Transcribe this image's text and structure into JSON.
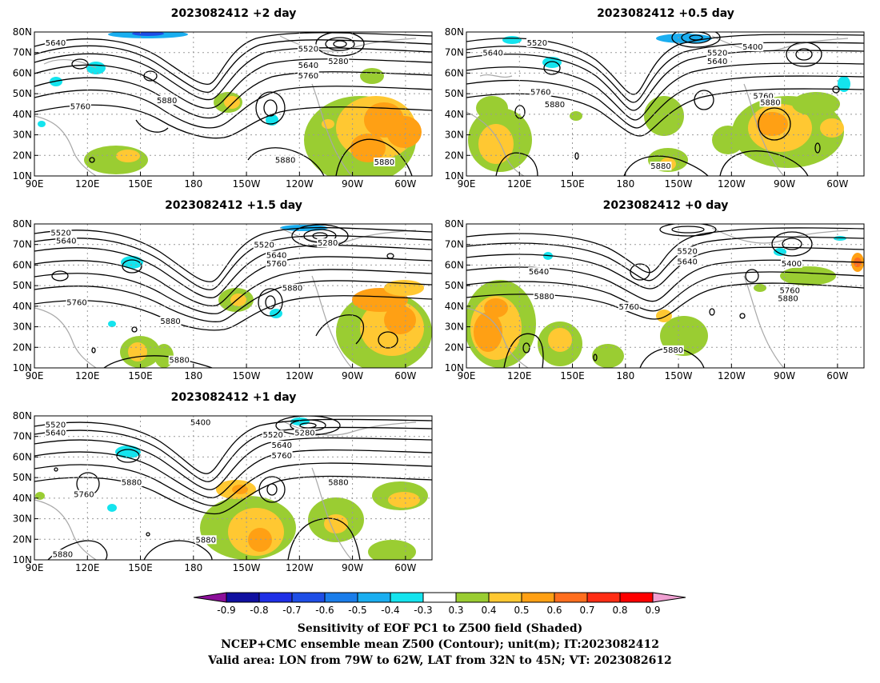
{
  "panels": [
    {
      "title": "2023082412 +2 day",
      "contour_labels": [
        {
          "text": "5640",
          "lon": 102,
          "lat": 75
        },
        {
          "text": "5520",
          "lon": 245,
          "lat": 72
        },
        {
          "text": "5280",
          "lon": 262,
          "lat": 66
        },
        {
          "text": "5640",
          "lon": 245,
          "lat": 64
        },
        {
          "text": "5760",
          "lon": 245,
          "lat": 59
        },
        {
          "text": "5760",
          "lon": 116,
          "lat": 44
        },
        {
          "text": "5880",
          "lon": 165,
          "lat": 47
        },
        {
          "text": "5880",
          "lon": 232,
          "lat": 18
        },
        {
          "text": "5880",
          "lon": 288,
          "lat": 17
        }
      ]
    },
    {
      "title": "2023082412 +0.5 day",
      "contour_labels": [
        {
          "text": "5520",
          "lon": 130,
          "lat": 75
        },
        {
          "text": "5640",
          "lon": 105,
          "lat": 70
        },
        {
          "text": "5400",
          "lon": 252,
          "lat": 73
        },
        {
          "text": "5520",
          "lon": 232,
          "lat": 70
        },
        {
          "text": "5640",
          "lon": 232,
          "lat": 66
        },
        {
          "text": "5760",
          "lon": 132,
          "lat": 51
        },
        {
          "text": "5880",
          "lon": 140,
          "lat": 45
        },
        {
          "text": "5760",
          "lon": 258,
          "lat": 49
        },
        {
          "text": "5880",
          "lon": 262,
          "lat": 46
        },
        {
          "text": "5880",
          "lon": 200,
          "lat": 15
        }
      ]
    },
    {
      "title": "2023082412 +1.5 day",
      "contour_labels": [
        {
          "text": "5520",
          "lon": 105,
          "lat": 76
        },
        {
          "text": "5640",
          "lon": 108,
          "lat": 72
        },
        {
          "text": "5520",
          "lon": 220,
          "lat": 70
        },
        {
          "text": "5280",
          "lon": 256,
          "lat": 71
        },
        {
          "text": "5640",
          "lon": 227,
          "lat": 65
        },
        {
          "text": "5760",
          "lon": 227,
          "lat": 61
        },
        {
          "text": "5760",
          "lon": 114,
          "lat": 42
        },
        {
          "text": "5880",
          "lon": 236,
          "lat": 49
        },
        {
          "text": "5880",
          "lon": 167,
          "lat": 33
        },
        {
          "text": "5880",
          "lon": 172,
          "lat": 14
        }
      ]
    },
    {
      "title": "2023082412 +0 day",
      "contour_labels": [
        {
          "text": "5520",
          "lon": 215,
          "lat": 67
        },
        {
          "text": "5640",
          "lon": 215,
          "lat": 62
        },
        {
          "text": "5400",
          "lon": 274,
          "lat": 61
        },
        {
          "text": "5640",
          "lon": 131,
          "lat": 57
        },
        {
          "text": "5880",
          "lon": 134,
          "lat": 45
        },
        {
          "text": "5760",
          "lon": 182,
          "lat": 40
        },
        {
          "text": "5760",
          "lon": 273,
          "lat": 48
        },
        {
          "text": "5880",
          "lon": 272,
          "lat": 44
        },
        {
          "text": "5880",
          "lon": 207,
          "lat": 19
        }
      ]
    },
    {
      "title": "2023082412 +1 day",
      "contour_labels": [
        {
          "text": "5400",
          "lon": 184,
          "lat": 77
        },
        {
          "text": "5520",
          "lon": 102,
          "lat": 76
        },
        {
          "text": "5640",
          "lon": 102,
          "lat": 72
        },
        {
          "text": "5280",
          "lon": 243,
          "lat": 72
        },
        {
          "text": "5520",
          "lon": 225,
          "lat": 71
        },
        {
          "text": "5640",
          "lon": 230,
          "lat": 66
        },
        {
          "text": "5760",
          "lon": 230,
          "lat": 61
        },
        {
          "text": "5880",
          "lon": 145,
          "lat": 48
        },
        {
          "text": "5880",
          "lon": 262,
          "lat": 48
        },
        {
          "text": "5760",
          "lon": 118,
          "lat": 42
        },
        {
          "text": "5880",
          "lon": 187,
          "lat": 20
        },
        {
          "text": "5880",
          "lon": 106,
          "lat": 13
        }
      ]
    }
  ],
  "axes": {
    "x_ticks": [
      "90E",
      "120E",
      "150E",
      "180",
      "150W",
      "120W",
      "90W",
      "60W"
    ],
    "y_ticks": [
      "80N",
      "70N",
      "60N",
      "50N",
      "40N",
      "30N",
      "20N",
      "10N"
    ]
  },
  "colorbar": {
    "labels": [
      "-0.9",
      "-0.8",
      "-0.7",
      "-0.6",
      "-0.5",
      "-0.4",
      "-0.3",
      "0.3",
      "0.4",
      "0.5",
      "0.6",
      "0.7",
      "0.8",
      "0.9"
    ],
    "colors": [
      "#8c0f9a",
      "#1010a0",
      "#1e2fe6",
      "#1e4ee6",
      "#1a7dea",
      "#1aaef0",
      "#14e4ee",
      "#ffffff",
      "#9acd32",
      "#ffc832",
      "#ffa014",
      "#ff6e1e",
      "#ff2d14",
      "#fe0000",
      "#f0a0d2"
    ]
  },
  "caption": {
    "line1": "Sensitivity of EOF PC1 to Z500 field (Shaded)",
    "line2": "NCEP+CMC ensemble mean Z500 (Contour); unit(m); IT:2023082412",
    "line3": "Valid area: LON from 79W to 62W, LAT from 32N to 45N; VT: 2023082612"
  }
}
